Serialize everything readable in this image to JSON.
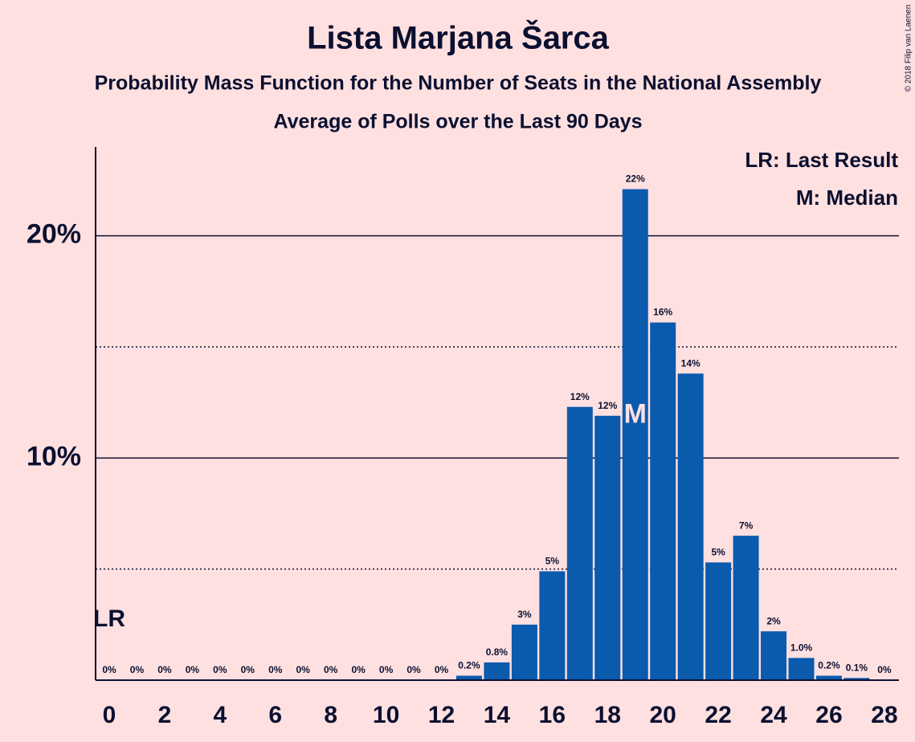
{
  "chart_data": {
    "type": "bar",
    "title": "Lista Marjana Šarca",
    "subtitle": "Probability Mass Function for the Number of Seats in the National Assembly",
    "subtitle2": "Average of Polls over the Last 90 Days",
    "copyright": "© 2018 Filip van Laenen",
    "categories": [
      0,
      1,
      2,
      3,
      4,
      5,
      6,
      7,
      8,
      9,
      10,
      11,
      12,
      13,
      14,
      15,
      16,
      17,
      18,
      19,
      20,
      21,
      22,
      23,
      24,
      25,
      26,
      27,
      28
    ],
    "xticks": [
      0,
      2,
      4,
      6,
      8,
      10,
      12,
      14,
      16,
      18,
      20,
      22,
      24,
      26,
      28
    ],
    "values": [
      0,
      0,
      0,
      0,
      0,
      0,
      0,
      0,
      0,
      0,
      0,
      0,
      0,
      0.2,
      0.8,
      2.5,
      4.9,
      12.3,
      11.9,
      22.1,
      16.1,
      13.8,
      5.3,
      6.5,
      2.2,
      1.0,
      0.2,
      0.1,
      0
    ],
    "value_labels": [
      "0%",
      "0%",
      "0%",
      "0%",
      "0%",
      "0%",
      "0%",
      "0%",
      "0%",
      "0%",
      "0%",
      "0%",
      "0%",
      "0.2%",
      "0.8%",
      "3%",
      "5%",
      "12%",
      "12%",
      "22%",
      "16%",
      "14%",
      "5%",
      "7%",
      "2%",
      "1.0%",
      "0.2%",
      "0.1%",
      "0%"
    ],
    "color": "#0a5aad",
    "ylim": [
      0,
      24
    ],
    "yticks": [
      {
        "value": 10,
        "label": "10%"
      },
      {
        "value": 20,
        "label": "20%"
      }
    ],
    "minor_yticks": [
      5,
      15
    ],
    "grid": true,
    "legend": [
      "LR: Last Result",
      "M: Median"
    ],
    "last_result": {
      "x": 0,
      "label": "LR"
    },
    "median": {
      "x": 19,
      "label": "M"
    }
  }
}
